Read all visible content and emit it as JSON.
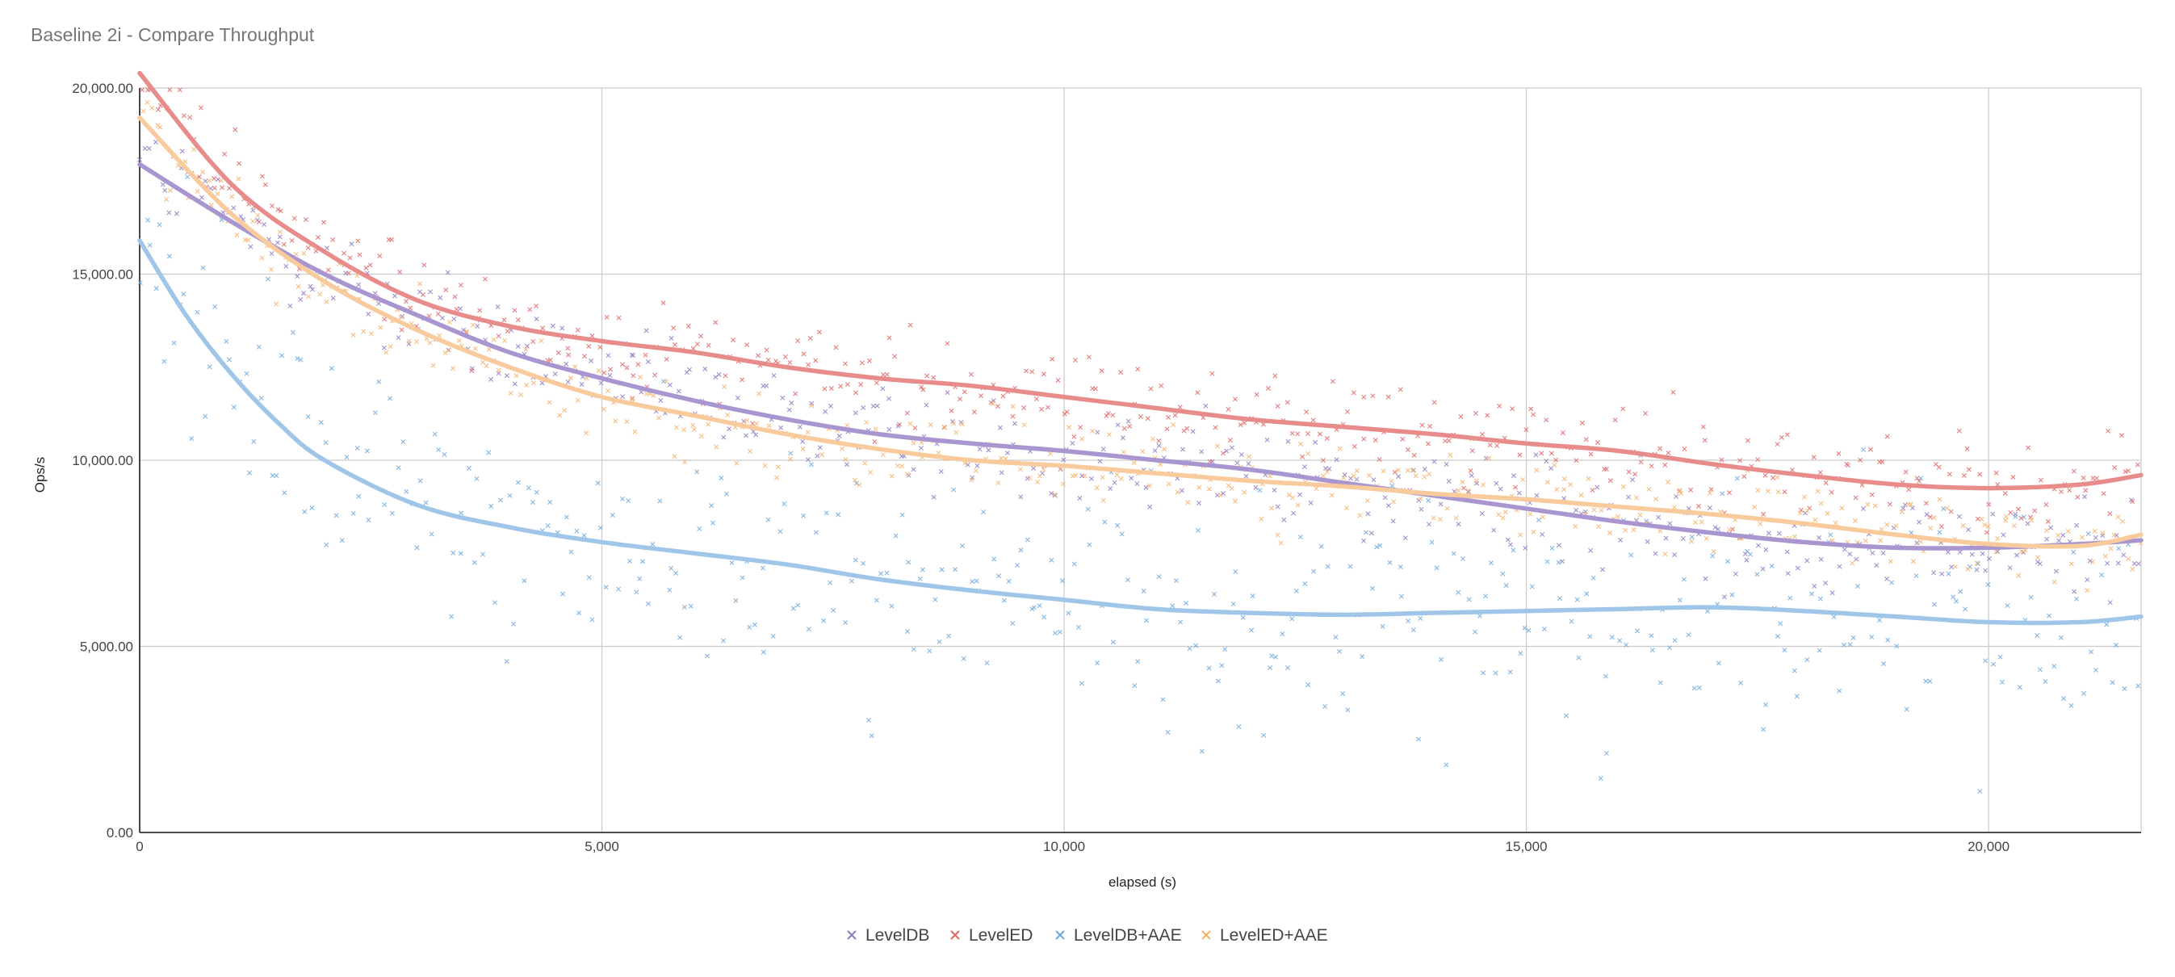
{
  "chart_data": {
    "type": "scatter",
    "title": "Baseline 2i - Compare Throughput",
    "xlabel": "elapsed (s)",
    "ylabel": "Ops/s",
    "xlim": [
      0,
      21650
    ],
    "ylim": [
      0,
      20000
    ],
    "x_ticks": [
      0,
      5000,
      10000,
      15000,
      20000
    ],
    "x_tick_labels": [
      "0",
      "5,000",
      "10,000",
      "15,000",
      "20,000"
    ],
    "y_ticks": [
      0,
      5000,
      10000,
      15000,
      20000
    ],
    "y_tick_labels": [
      "0.00",
      "5,000.00",
      "10,000.00",
      "15,000.00",
      "20,000.00"
    ],
    "grid": true,
    "legend_position": "bottom",
    "marker": "x",
    "trendline": "polynomial",
    "series": [
      {
        "name": "LevelDB",
        "color": "#8e7cc3",
        "trend_color": "#a996d0",
        "trend": [
          [
            0,
            17950
          ],
          [
            1000,
            16400
          ],
          [
            2000,
            15000
          ],
          [
            3000,
            13900
          ],
          [
            4000,
            12900
          ],
          [
            5000,
            12200
          ],
          [
            6000,
            11600
          ],
          [
            7000,
            11100
          ],
          [
            8000,
            10700
          ],
          [
            9000,
            10450
          ],
          [
            10000,
            10250
          ],
          [
            11000,
            10000
          ],
          [
            12000,
            9750
          ],
          [
            13000,
            9400
          ],
          [
            14000,
            9050
          ],
          [
            15000,
            8700
          ],
          [
            16000,
            8350
          ],
          [
            17000,
            8050
          ],
          [
            18000,
            7800
          ],
          [
            19000,
            7650
          ],
          [
            20000,
            7650
          ],
          [
            21000,
            7750
          ],
          [
            21650,
            7850
          ]
        ],
        "spread": 700
      },
      {
        "name": "LevelED",
        "color": "#e06666",
        "trend_color": "#e88b8b",
        "trend": [
          [
            0,
            20400
          ],
          [
            1000,
            17400
          ],
          [
            2000,
            15600
          ],
          [
            3000,
            14300
          ],
          [
            4000,
            13600
          ],
          [
            5000,
            13200
          ],
          [
            6000,
            12900
          ],
          [
            7000,
            12500
          ],
          [
            8000,
            12200
          ],
          [
            9000,
            12000
          ],
          [
            10000,
            11700
          ],
          [
            11000,
            11400
          ],
          [
            12000,
            11100
          ],
          [
            13000,
            10900
          ],
          [
            14000,
            10700
          ],
          [
            15000,
            10450
          ],
          [
            16000,
            10250
          ],
          [
            17000,
            9900
          ],
          [
            18000,
            9600
          ],
          [
            19000,
            9350
          ],
          [
            20000,
            9250
          ],
          [
            21000,
            9350
          ],
          [
            21650,
            9600
          ]
        ],
        "spread": 650
      },
      {
        "name": "LevelDB+AAE",
        "color": "#6fa8dc",
        "trend_color": "#9fc5e8",
        "trend": [
          [
            0,
            15900
          ],
          [
            500,
            13900
          ],
          [
            1000,
            12300
          ],
          [
            1500,
            11000
          ],
          [
            2000,
            10000
          ],
          [
            3000,
            8800
          ],
          [
            4000,
            8200
          ],
          [
            5000,
            7800
          ],
          [
            6000,
            7500
          ],
          [
            7000,
            7200
          ],
          [
            8000,
            6800
          ],
          [
            9000,
            6500
          ],
          [
            10000,
            6250
          ],
          [
            11000,
            6000
          ],
          [
            12000,
            5900
          ],
          [
            13000,
            5850
          ],
          [
            14000,
            5900
          ],
          [
            15000,
            5950
          ],
          [
            16000,
            6000
          ],
          [
            17000,
            6050
          ],
          [
            18000,
            5950
          ],
          [
            19000,
            5800
          ],
          [
            20000,
            5650
          ],
          [
            21000,
            5650
          ],
          [
            21650,
            5800
          ]
        ],
        "spread": 1600
      },
      {
        "name": "LevelED+AAE",
        "color": "#f6b26b",
        "trend_color": "#f9cb9c",
        "trend": [
          [
            0,
            19200
          ],
          [
            1000,
            16600
          ],
          [
            2000,
            14800
          ],
          [
            3000,
            13500
          ],
          [
            4000,
            12500
          ],
          [
            5000,
            11700
          ],
          [
            6000,
            11200
          ],
          [
            7000,
            10700
          ],
          [
            8000,
            10300
          ],
          [
            9000,
            10000
          ],
          [
            10000,
            9850
          ],
          [
            11000,
            9650
          ],
          [
            12000,
            9450
          ],
          [
            13000,
            9300
          ],
          [
            14000,
            9100
          ],
          [
            15000,
            8950
          ],
          [
            16000,
            8750
          ],
          [
            17000,
            8550
          ],
          [
            18000,
            8300
          ],
          [
            19000,
            8000
          ],
          [
            20000,
            7750
          ],
          [
            21000,
            7700
          ],
          [
            21650,
            8000
          ]
        ],
        "spread": 550
      }
    ]
  }
}
